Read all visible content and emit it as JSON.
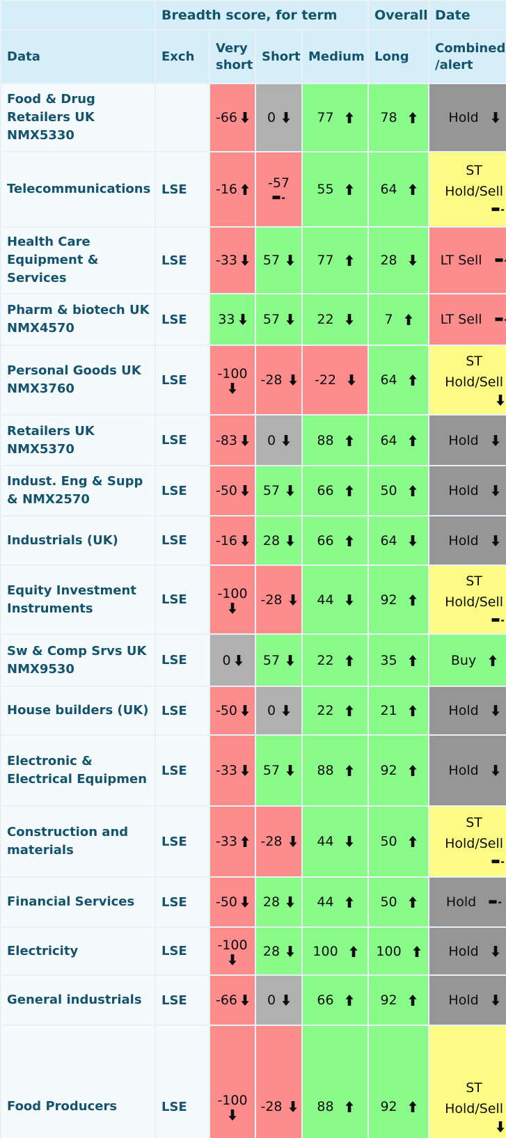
{
  "table": {
    "group_headers": {
      "corner": "",
      "breadth": "Breadth score, for term",
      "overall": "Overall",
      "date": "Date"
    },
    "columns": {
      "data": "Data",
      "exch": "Exch",
      "very_short": "Very short",
      "short": "Short",
      "medium": "Medium",
      "long": "Long",
      "combined": "Combined\n/alert"
    },
    "colors": {
      "positive_green": "#89fb89",
      "negative_red": "#fd8c8c",
      "neutral_gray": "#b0b0b0",
      "hold_gray": "#969696",
      "alert_yellow": "#fcfc85",
      "header_blue": "#d6eef8",
      "row_label_bg": "#f5fafd",
      "label_text": "#14536e"
    },
    "rows": [
      {
        "name": "Food & Drug Retailers UK NMX5330",
        "exch": "",
        "scores": {
          "very_short": {
            "value": -66,
            "trend": "down",
            "tone": "negative"
          },
          "short": {
            "value": 0,
            "trend": "down",
            "tone": "neutral"
          },
          "medium": {
            "value": 77,
            "trend": "up",
            "tone": "positive"
          },
          "long": {
            "value": 78,
            "trend": "up",
            "tone": "positive"
          }
        },
        "combined": {
          "label": "Hold",
          "trend": "down",
          "tone": "hold",
          "stacked": false
        }
      },
      {
        "name": "Telecommunications",
        "exch": "LSE",
        "scores": {
          "very_short": {
            "value": -16,
            "trend": "up",
            "tone": "negative"
          },
          "short": {
            "value": -57,
            "trend": "dash",
            "tone": "negative"
          },
          "medium": {
            "value": 55,
            "trend": "up",
            "tone": "positive"
          },
          "long": {
            "value": 64,
            "trend": "up",
            "tone": "positive"
          }
        },
        "combined": {
          "label": "ST\nHold/Sell",
          "trend": "dash",
          "tone": "alert",
          "stacked": true
        }
      },
      {
        "name": "Health Care Equipment & Services",
        "exch": "LSE",
        "scores": {
          "very_short": {
            "value": -33,
            "trend": "down",
            "tone": "negative"
          },
          "short": {
            "value": 57,
            "trend": "down",
            "tone": "positive"
          },
          "medium": {
            "value": 77,
            "trend": "up",
            "tone": "positive"
          },
          "long": {
            "value": 28,
            "trend": "down",
            "tone": "positive"
          }
        },
        "combined": {
          "label": "LT Sell",
          "trend": "dash",
          "tone": "negative",
          "stacked": false
        }
      },
      {
        "name": "Pharm & biotech UK NMX4570",
        "exch": "LSE",
        "scores": {
          "very_short": {
            "value": 33,
            "trend": "down",
            "tone": "positive"
          },
          "short": {
            "value": 57,
            "trend": "down",
            "tone": "positive"
          },
          "medium": {
            "value": 22,
            "trend": "down",
            "tone": "positive"
          },
          "long": {
            "value": 7,
            "trend": "up",
            "tone": "positive"
          }
        },
        "combined": {
          "label": "LT Sell",
          "trend": "dash",
          "tone": "negative",
          "stacked": false
        }
      },
      {
        "name": "Personal Goods UK NMX3760",
        "exch": "LSE",
        "scores": {
          "very_short": {
            "value": -100,
            "trend": "down",
            "tone": "negative"
          },
          "short": {
            "value": -28,
            "trend": "down",
            "tone": "negative"
          },
          "medium": {
            "value": -22,
            "trend": "down",
            "tone": "negative"
          },
          "long": {
            "value": 64,
            "trend": "up",
            "tone": "positive"
          }
        },
        "combined": {
          "label": "ST\nHold/Sell",
          "trend": "down",
          "tone": "alert",
          "stacked": true
        }
      },
      {
        "name": "Retailers UK NMX5370",
        "exch": "LSE",
        "scores": {
          "very_short": {
            "value": -83,
            "trend": "down",
            "tone": "negative"
          },
          "short": {
            "value": 0,
            "trend": "down",
            "tone": "neutral"
          },
          "medium": {
            "value": 88,
            "trend": "up",
            "tone": "positive"
          },
          "long": {
            "value": 64,
            "trend": "up",
            "tone": "positive"
          }
        },
        "combined": {
          "label": "Hold",
          "trend": "down",
          "tone": "hold",
          "stacked": false
        }
      },
      {
        "name": "Indust. Eng & Supp & NMX2570",
        "exch": "LSE",
        "scores": {
          "very_short": {
            "value": -50,
            "trend": "down",
            "tone": "negative"
          },
          "short": {
            "value": 57,
            "trend": "down",
            "tone": "positive"
          },
          "medium": {
            "value": 66,
            "trend": "up",
            "tone": "positive"
          },
          "long": {
            "value": 50,
            "trend": "up",
            "tone": "positive"
          }
        },
        "combined": {
          "label": "Hold",
          "trend": "down",
          "tone": "hold",
          "stacked": false
        }
      },
      {
        "name": "Industrials (UK)",
        "exch": "LSE",
        "scores": {
          "very_short": {
            "value": -16,
            "trend": "down",
            "tone": "negative"
          },
          "short": {
            "value": 28,
            "trend": "down",
            "tone": "positive"
          },
          "medium": {
            "value": 66,
            "trend": "up",
            "tone": "positive"
          },
          "long": {
            "value": 64,
            "trend": "down",
            "tone": "positive"
          }
        },
        "combined": {
          "label": "Hold",
          "trend": "down",
          "tone": "hold",
          "stacked": false
        }
      },
      {
        "name": "Equity Investment Instruments",
        "exch": "LSE",
        "scores": {
          "very_short": {
            "value": -100,
            "trend": "down",
            "tone": "negative"
          },
          "short": {
            "value": -28,
            "trend": "down",
            "tone": "negative"
          },
          "medium": {
            "value": 44,
            "trend": "down",
            "tone": "positive"
          },
          "long": {
            "value": 92,
            "trend": "up",
            "tone": "positive"
          }
        },
        "combined": {
          "label": "ST\nHold/Sell",
          "trend": "dash",
          "tone": "alert",
          "stacked": true
        }
      },
      {
        "name": "Sw & Comp Srvs UK NMX9530",
        "exch": "LSE",
        "scores": {
          "very_short": {
            "value": 0,
            "trend": "down",
            "tone": "neutral"
          },
          "short": {
            "value": 57,
            "trend": "down",
            "tone": "positive"
          },
          "medium": {
            "value": 22,
            "trend": "up",
            "tone": "positive"
          },
          "long": {
            "value": 35,
            "trend": "up",
            "tone": "positive"
          }
        },
        "combined": {
          "label": "Buy",
          "trend": "up",
          "tone": "positive",
          "stacked": false
        }
      },
      {
        "name": "House builders (UK)",
        "exch": "LSE",
        "scores": {
          "very_short": {
            "value": -50,
            "trend": "down",
            "tone": "negative"
          },
          "short": {
            "value": 0,
            "trend": "down",
            "tone": "neutral"
          },
          "medium": {
            "value": 22,
            "trend": "up",
            "tone": "positive"
          },
          "long": {
            "value": 21,
            "trend": "up",
            "tone": "positive"
          }
        },
        "combined": {
          "label": "Hold",
          "trend": "down",
          "tone": "hold",
          "stacked": false
        }
      },
      {
        "name": "Electronic & Electrical Equipmen",
        "exch": "LSE",
        "scores": {
          "very_short": {
            "value": -33,
            "trend": "down",
            "tone": "negative"
          },
          "short": {
            "value": 57,
            "trend": "down",
            "tone": "positive"
          },
          "medium": {
            "value": 88,
            "trend": "up",
            "tone": "positive"
          },
          "long": {
            "value": 92,
            "trend": "up",
            "tone": "positive"
          }
        },
        "combined": {
          "label": "Hold",
          "trend": "down",
          "tone": "hold",
          "stacked": false
        }
      },
      {
        "name": "Construction and materials",
        "exch": "LSE",
        "scores": {
          "very_short": {
            "value": -33,
            "trend": "up",
            "tone": "negative"
          },
          "short": {
            "value": -28,
            "trend": "down",
            "tone": "negative"
          },
          "medium": {
            "value": 44,
            "trend": "down",
            "tone": "positive"
          },
          "long": {
            "value": 50,
            "trend": "up",
            "tone": "positive"
          }
        },
        "combined": {
          "label": "ST\nHold/Sell",
          "trend": "dash",
          "tone": "alert",
          "stacked": true
        }
      },
      {
        "name": "Financial Services",
        "exch": "LSE",
        "scores": {
          "very_short": {
            "value": -50,
            "trend": "down",
            "tone": "negative"
          },
          "short": {
            "value": 28,
            "trend": "down",
            "tone": "positive"
          },
          "medium": {
            "value": 44,
            "trend": "up",
            "tone": "positive"
          },
          "long": {
            "value": 50,
            "trend": "up",
            "tone": "positive"
          }
        },
        "combined": {
          "label": "Hold",
          "trend": "dash",
          "tone": "hold",
          "stacked": false
        }
      },
      {
        "name": "Electricity",
        "exch": "LSE",
        "scores": {
          "very_short": {
            "value": -100,
            "trend": "down",
            "tone": "negative"
          },
          "short": {
            "value": 28,
            "trend": "down",
            "tone": "positive"
          },
          "medium": {
            "value": 100,
            "trend": "up",
            "tone": "positive"
          },
          "long": {
            "value": 100,
            "trend": "up",
            "tone": "positive"
          }
        },
        "combined": {
          "label": "Hold",
          "trend": "down",
          "tone": "hold",
          "stacked": false
        }
      },
      {
        "name": "General industrials",
        "exch": "LSE",
        "scores": {
          "very_short": {
            "value": -66,
            "trend": "down",
            "tone": "negative"
          },
          "short": {
            "value": 0,
            "trend": "down",
            "tone": "neutral"
          },
          "medium": {
            "value": 66,
            "trend": "up",
            "tone": "positive"
          },
          "long": {
            "value": 92,
            "trend": "up",
            "tone": "positive"
          }
        },
        "combined": {
          "label": "Hold",
          "trend": "down",
          "tone": "hold",
          "stacked": false
        }
      },
      {
        "name": "Food Producers",
        "exch": "LSE",
        "scores": {
          "very_short": {
            "value": -100,
            "trend": "down",
            "tone": "negative"
          },
          "short": {
            "value": -28,
            "trend": "down",
            "tone": "negative"
          },
          "medium": {
            "value": 88,
            "trend": "up",
            "tone": "positive"
          },
          "long": {
            "value": 92,
            "trend": "up",
            "tone": "positive"
          }
        },
        "combined": {
          "label": "ST\nHold/Sell",
          "trend": "down",
          "tone": "alert",
          "stacked": true
        }
      }
    ]
  }
}
